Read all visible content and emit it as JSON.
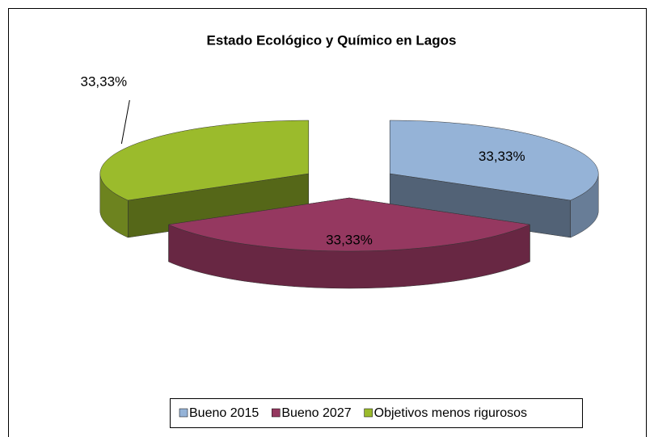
{
  "chart_data": {
    "type": "pie3d",
    "title": "Estado Ecológico y Químico en Lagos",
    "categories": [
      "Bueno 2015",
      "Bueno 2027",
      "Objetivos menos rigurosos"
    ],
    "values": [
      33.33,
      33.33,
      33.33
    ],
    "value_labels": [
      "33,33%",
      "33,33%",
      "33,33%"
    ],
    "colors": [
      "#95b3d7",
      "#953860",
      "#9bbb2c"
    ],
    "legend": "bottom"
  }
}
